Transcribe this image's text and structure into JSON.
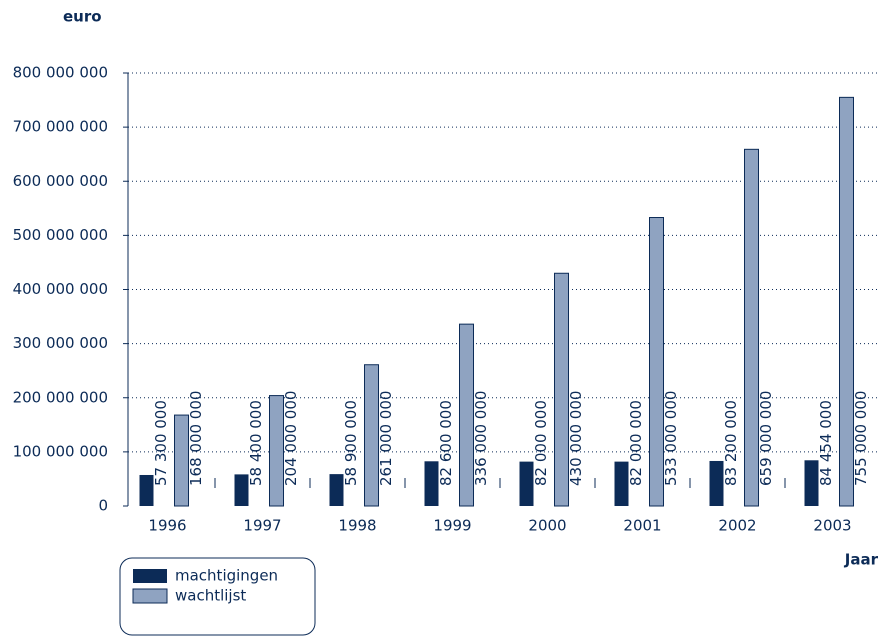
{
  "chart_data": {
    "type": "bar",
    "y_label": "euro",
    "x_label": "Jaar",
    "categories": [
      "1996",
      "1997",
      "1998",
      "1999",
      "2000",
      "2001",
      "2002",
      "2003"
    ],
    "series": [
      {
        "name": "machtigingen",
        "color": "#0c2b57",
        "values": [
          57300000,
          58400000,
          58900000,
          82600000,
          82000000,
          82000000,
          83200000,
          84454000
        ],
        "value_labels": [
          "57 300 000",
          "58 400 000",
          "58 900 000",
          "82 600 000",
          "82 000 000",
          "82 000 000",
          "83 200 000",
          "84 454 000"
        ]
      },
      {
        "name": "wachtlijst",
        "color": "#8fa3c1",
        "values": [
          168000000,
          204000000,
          261000000,
          336000000,
          430000000,
          533000000,
          659000000,
          755000000
        ],
        "value_labels": [
          "168 000 000",
          "204 000 000",
          "261 000 000",
          "336 000 000",
          "430 000 000",
          "533 000 000",
          "659 000 000",
          "755 000 000"
        ]
      }
    ],
    "ylim": [
      0,
      800000000
    ],
    "yticks": [
      0,
      {
        "value": 100000000,
        "label": "100 000 000"
      },
      {
        "value": 200000000,
        "label": "200 000 000"
      },
      {
        "value": 300000000,
        "label": "300 000 000"
      },
      {
        "value": 400000000,
        "label": "400 000 000"
      },
      {
        "value": 500000000,
        "label": "500 000 000"
      },
      {
        "value": 600000000,
        "label": "600 000 000"
      },
      {
        "value": 700000000,
        "label": "700 000 000"
      },
      {
        "value": 800000000,
        "label": "800 000 000"
      }
    ],
    "grid": true,
    "legend": "bottom-left"
  }
}
